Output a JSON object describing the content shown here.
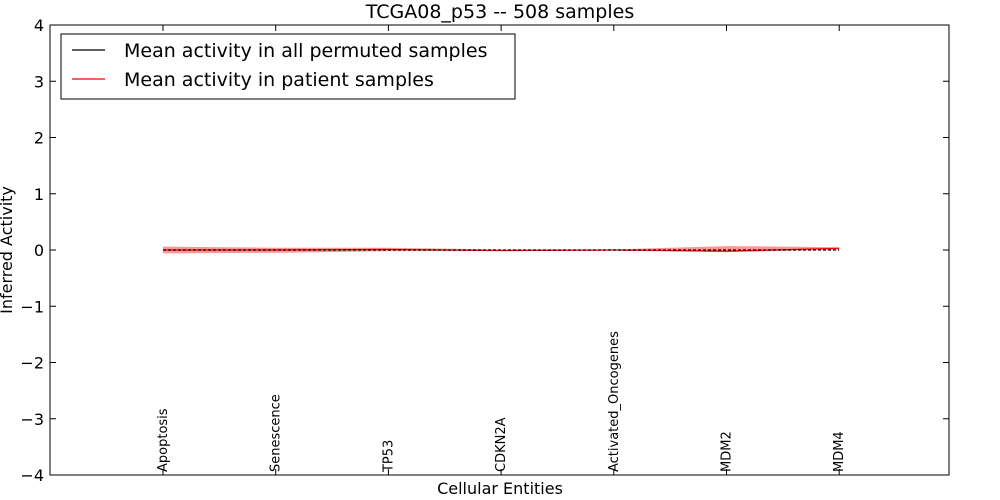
{
  "chart_data": {
    "type": "line",
    "title": "TCGA08_p53 -- 508 samples",
    "xlabel": "Cellular Entities",
    "ylabel": "Inferred Activity",
    "ylim": [
      -4,
      4
    ],
    "yticks": [
      {
        "value": 4,
        "label": "4"
      },
      {
        "value": 3,
        "label": "3"
      },
      {
        "value": 2,
        "label": "2"
      },
      {
        "value": 1,
        "label": "1"
      },
      {
        "value": 0,
        "label": "0"
      },
      {
        "value": -1,
        "label": "−1"
      },
      {
        "value": -2,
        "label": "−2"
      },
      {
        "value": -3,
        "label": "−3"
      },
      {
        "value": -4,
        "label": "−4"
      }
    ],
    "categories": [
      "Apoptosis",
      "Senescence",
      "TP53",
      "CDKN2A",
      "Activated_Oncogenes",
      "MDM2",
      "MDM4"
    ],
    "series": [
      {
        "name": "Mean activity in all permuted samples",
        "color": "#000000",
        "style": "dashed",
        "values": [
          0.0,
          0.0,
          0.0,
          0.0,
          0.0,
          0.0,
          0.0
        ]
      },
      {
        "name": "Mean activity in patient samples",
        "color": "#ff0000",
        "style": "solid",
        "values": [
          0.0,
          0.0,
          0.01,
          -0.01,
          0.0,
          -0.02,
          0.03
        ],
        "band_upper": [
          0.06,
          0.04,
          0.04,
          0.01,
          0.01,
          0.07,
          0.05
        ],
        "band_lower": [
          -0.06,
          -0.05,
          -0.02,
          -0.02,
          -0.01,
          -0.04,
          0.01
        ],
        "band_color": "#ff4040"
      }
    ],
    "legend": {
      "position": "top-left",
      "entries": [
        {
          "label": "Mean activity in all permuted samples",
          "color": "#000000"
        },
        {
          "label": "Mean activity in patient samples",
          "color": "#ff0000"
        }
      ]
    }
  }
}
